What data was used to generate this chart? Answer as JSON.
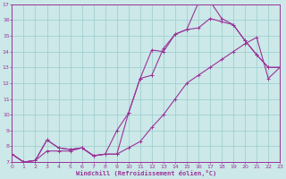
{
  "xlabel": "Windchill (Refroidissement éolien,°C)",
  "bg_color": "#cce8e8",
  "grid_color": "#99cccc",
  "line_color": "#993399",
  "ylim": [
    7,
    17
  ],
  "xlim": [
    0,
    23
  ],
  "yticks": [
    7,
    8,
    9,
    10,
    11,
    12,
    13,
    14,
    15,
    16,
    17
  ],
  "xticks": [
    0,
    1,
    2,
    3,
    4,
    5,
    6,
    7,
    8,
    9,
    10,
    11,
    12,
    13,
    14,
    15,
    16,
    17,
    18,
    19,
    20,
    21,
    22,
    23
  ],
  "line1_x": [
    0,
    1,
    2,
    3,
    4,
    5,
    6,
    7,
    8,
    9,
    10,
    11,
    12,
    13,
    14,
    15,
    16,
    17,
    18,
    19,
    20,
    21,
    22,
    23
  ],
  "line1_y": [
    7.5,
    7.0,
    7.1,
    8.4,
    7.9,
    7.8,
    7.9,
    7.4,
    7.5,
    9.0,
    10.1,
    12.3,
    12.5,
    14.2,
    15.1,
    15.4,
    17.1,
    17.2,
    16.1,
    15.7,
    14.7,
    13.8,
    13.0,
    13.0
  ],
  "line2_x": [
    0,
    1,
    2,
    3,
    4,
    5,
    6,
    7,
    8,
    9,
    10,
    11,
    12,
    13,
    14,
    15,
    16,
    17,
    18,
    19,
    20,
    21,
    22,
    23
  ],
  "line2_y": [
    7.5,
    7.0,
    7.1,
    8.4,
    7.9,
    7.8,
    7.9,
    7.4,
    7.5,
    7.5,
    10.1,
    12.3,
    14.1,
    14.0,
    15.1,
    15.4,
    15.5,
    16.1,
    15.9,
    15.7,
    14.7,
    13.8,
    13.0,
    13.0
  ],
  "line3_x": [
    0,
    1,
    2,
    3,
    4,
    5,
    6,
    7,
    8,
    9,
    10,
    11,
    12,
    13,
    14,
    15,
    16,
    17,
    18,
    19,
    20,
    21,
    22,
    23
  ],
  "line3_y": [
    7.5,
    7.0,
    7.1,
    7.7,
    7.7,
    7.7,
    7.9,
    7.4,
    7.5,
    7.5,
    7.9,
    8.3,
    9.2,
    10.0,
    11.0,
    12.0,
    12.5,
    13.0,
    13.5,
    14.0,
    14.5,
    14.9,
    12.3,
    13.0
  ]
}
